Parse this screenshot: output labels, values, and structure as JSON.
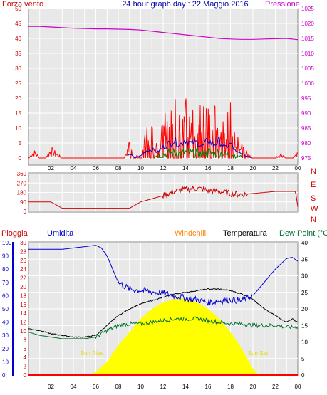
{
  "header": {
    "left_title": "Forza vento",
    "center_title": "24 hour graph day : 22 Maggio 2016",
    "right_title": "Pressione"
  },
  "colors": {
    "wind": "#ff0000",
    "gust_green": "#008000",
    "wind_avg_blue": "#0000cc",
    "pressure": "#cc00cc",
    "direction": "#cc0000",
    "humidity": "#0000cc",
    "temperature": "#000000",
    "dewpoint": "#007030",
    "sun": "#ffff00",
    "windchill_label": "#ff8000",
    "panel_bg": "#e8e8e8",
    "grid": "#ffffff"
  },
  "x_ticks": [
    "02",
    "04",
    "06",
    "08",
    "10",
    "12",
    "14",
    "16",
    "18",
    "20",
    "22",
    "00"
  ],
  "wind_axis_ticks": [
    "0",
    "5",
    "10",
    "15",
    "20",
    "25",
    "30",
    "35",
    "40",
    "45",
    "50"
  ],
  "pressure_axis_ticks": [
    "975",
    "980",
    "985",
    "990",
    "995",
    "1000",
    "1005",
    "1010",
    "1015",
    "1020",
    "1025"
  ],
  "direction_axis_ticks": [
    "0",
    "90",
    "180",
    "270",
    "360"
  ],
  "direction_letters": [
    "N",
    "W",
    "S",
    "E",
    "N"
  ],
  "bottom_labels": {
    "rain": "Pioggia",
    "humidity": "Umidita",
    "windchill": "Windchill",
    "temperature": "Temperatura",
    "dewpoint": "Dew Point (°C",
    "sunrise": "Sun Rise",
    "sunset": "Sun Set"
  },
  "humidity_axis_ticks": [
    "0",
    "10",
    "20",
    "30",
    "40",
    "50",
    "60",
    "70",
    "80",
    "90",
    "100"
  ],
  "rain_axis_ticks": [
    "0",
    "2",
    "4",
    "6",
    "8",
    "10",
    "12",
    "14",
    "16",
    "18",
    "20",
    "22",
    "24",
    "26",
    "28",
    "30"
  ],
  "temp_axis_ticks": [
    "0",
    "5",
    "10",
    "15",
    "20",
    "25",
    "30",
    "35",
    "40"
  ],
  "chart_data": [
    {
      "type": "line",
      "title": "24 hour graph day : 22 Maggio 2016",
      "x_unit": "hour of day",
      "ylabel": "Forza vento",
      "y2label": "Pressione",
      "ylim": [
        0,
        50
      ],
      "y2lim": [
        975,
        1025
      ],
      "grid": true,
      "series": [
        {
          "name": "Forza vento",
          "axis": "left",
          "x": [
            0,
            0.5,
            1,
            1.5,
            2,
            3,
            4,
            5,
            6,
            7,
            8,
            8.5,
            9,
            9.5,
            10,
            10.5,
            11,
            11.5,
            12,
            12.5,
            13,
            13.5,
            14,
            14.5,
            15,
            15.5,
            16,
            16.5,
            17,
            17.5,
            18,
            18.5,
            19,
            19.5,
            20,
            21,
            22,
            22.5,
            23,
            23.5,
            24
          ],
          "values": [
            0,
            3,
            0,
            0,
            4,
            0,
            0,
            0,
            0,
            0,
            0,
            0,
            6,
            0,
            3,
            10,
            12,
            8,
            15,
            20,
            24,
            18,
            26,
            20,
            22,
            16,
            25,
            18,
            24,
            14,
            20,
            8,
            6,
            2,
            0,
            0,
            0,
            2,
            0,
            0,
            2
          ]
        },
        {
          "name": "Pressione",
          "axis": "right",
          "x": [
            0,
            1,
            2,
            3,
            4,
            5,
            6,
            7,
            8,
            9,
            10,
            11,
            12,
            13,
            14,
            15,
            16,
            17,
            18,
            19,
            20,
            21,
            22,
            23,
            24
          ],
          "values": [
            1019,
            1019,
            1018.8,
            1018.6,
            1018.4,
            1018.3,
            1018.2,
            1018.2,
            1018.1,
            1018,
            1017.8,
            1017.4,
            1017,
            1016.6,
            1016.2,
            1015.8,
            1015.4,
            1015,
            1014.8,
            1014.7,
            1014.7,
            1014.8,
            1014.9,
            1015,
            1014.6
          ]
        }
      ]
    },
    {
      "type": "line",
      "title": "",
      "x_unit": "hour of day",
      "ylim": [
        0,
        360
      ],
      "series": [
        {
          "name": "",
          "x": [
            0,
            1,
            2,
            2.5,
            3,
            4,
            5,
            6,
            7,
            8,
            9,
            10,
            11,
            12,
            13,
            14,
            15,
            16,
            17,
            18,
            19,
            20,
            21,
            22,
            23,
            23.8,
            24
          ],
          "values": [
            90,
            90,
            90,
            60,
            30,
            30,
            30,
            30,
            30,
            30,
            30,
            90,
            120,
            150,
            190,
            210,
            220,
            200,
            190,
            170,
            160,
            170,
            180,
            190,
            190,
            190,
            45
          ]
        }
      ]
    },
    {
      "type": "line",
      "title": "",
      "x_unit": "hour of day",
      "ylabel": "Umidita",
      "y2label": "Temperatura / Dew Point (°C",
      "ylim": [
        0,
        100
      ],
      "y2lim": [
        0,
        40
      ],
      "grid": true,
      "series": [
        {
          "name": "Umidita",
          "axis": "left",
          "x": [
            0,
            1,
            2,
            3,
            4,
            5,
            6,
            6.5,
            7,
            8,
            9,
            10,
            11,
            12,
            13,
            14,
            15,
            16,
            17,
            18,
            19,
            20,
            21,
            22,
            23,
            23.5,
            24
          ],
          "values": [
            95,
            95,
            95,
            95,
            96,
            97,
            98,
            96,
            90,
            70,
            65,
            64,
            63,
            62,
            60,
            58,
            57,
            55,
            56,
            57,
            56,
            60,
            70,
            80,
            88,
            89,
            86
          ]
        },
        {
          "name": "Temperatura",
          "axis": "right",
          "x": [
            0,
            1,
            2,
            3,
            4,
            5,
            6,
            7,
            8,
            9,
            10,
            11,
            12,
            13,
            14,
            15,
            16,
            17,
            18,
            19,
            20,
            21,
            22,
            23,
            23.5,
            24
          ],
          "values": [
            14,
            13.5,
            12.5,
            12,
            11.5,
            11.5,
            12,
            15,
            18,
            20,
            21.5,
            22.5,
            23.5,
            24.5,
            25,
            25.5,
            26,
            26,
            25.5,
            24.5,
            23,
            20,
            18,
            16,
            17,
            16
          ]
        },
        {
          "name": "Dew Point (°C",
          "axis": "right",
          "x": [
            0,
            1,
            2,
            3,
            4,
            5,
            6,
            7,
            8,
            9,
            10,
            11,
            12,
            13,
            14,
            15,
            16,
            17,
            18,
            19,
            20,
            21,
            22,
            23,
            24
          ],
          "values": [
            13,
            12,
            11.5,
            11,
            11,
            11,
            11.5,
            13.5,
            15,
            15.5,
            15.5,
            16,
            16.5,
            17,
            17,
            17,
            16.5,
            16,
            15.5,
            15.5,
            15,
            15,
            15,
            14.5,
            14.5
          ]
        },
        {
          "name": "Sun",
          "axis": "right",
          "type": "area",
          "x": [
            5.5,
            6,
            7,
            8,
            9,
            10,
            11,
            12,
            13,
            14,
            15,
            16,
            17,
            18,
            19,
            20,
            20.5
          ],
          "values": [
            0,
            1,
            4,
            9,
            13,
            17,
            20,
            22,
            23,
            23,
            22,
            20,
            17,
            13,
            8,
            2,
            0
          ]
        }
      ]
    }
  ]
}
